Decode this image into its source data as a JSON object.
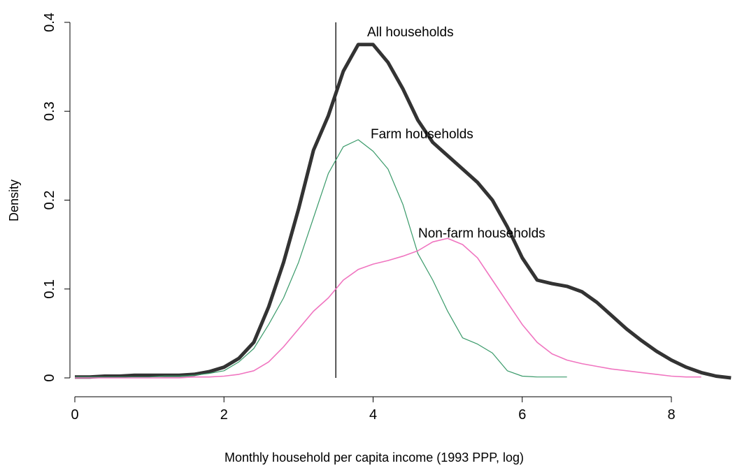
{
  "chart_data": {
    "type": "line",
    "xlabel": "Monthly household per capita income (1993 PPP, log)",
    "ylabel": "Density",
    "x": [
      0,
      0.2,
      0.4,
      0.6,
      0.8,
      1,
      1.2,
      1.4,
      1.6,
      1.8,
      2,
      2.2,
      2.4,
      2.6,
      2.8,
      3,
      3.2,
      3.4,
      3.6,
      3.8,
      4,
      4.2,
      4.4,
      4.6,
      4.8,
      5,
      5.2,
      5.4,
      5.6,
      5.8,
      6,
      6.2,
      6.4,
      6.6,
      6.8,
      7,
      7.2,
      7.4,
      7.6,
      7.8,
      8,
      8.2,
      8.4,
      8.6,
      8.8
    ],
    "series": [
      {
        "name": "All households",
        "color": "#333333",
        "values": [
          0.001,
          0.001,
          0.002,
          0.002,
          0.003,
          0.003,
          0.003,
          0.003,
          0.004,
          0.007,
          0.012,
          0.022,
          0.04,
          0.08,
          0.13,
          0.19,
          0.256,
          0.295,
          0.345,
          0.375,
          0.375,
          0.355,
          0.325,
          0.29,
          0.265,
          0.25,
          0.235,
          0.22,
          0.2,
          0.17,
          0.135,
          0.11,
          0.106,
          0.103,
          0.097,
          0.085,
          0.07,
          0.055,
          0.042,
          0.03,
          0.02,
          0.012,
          0.006,
          0.002,
          0
        ]
      },
      {
        "name": "Farm households",
        "color": "#3a9a6a",
        "values": [
          0.001,
          0.001,
          0.001,
          0.001,
          0.001,
          0.001,
          0.002,
          0.002,
          0.003,
          0.005,
          0.008,
          0.018,
          0.033,
          0.06,
          0.09,
          0.13,
          0.18,
          0.23,
          0.26,
          0.268,
          0.255,
          0.235,
          0.195,
          0.14,
          0.11,
          0.075,
          0.045,
          0.038,
          0.028,
          0.008,
          0.002,
          0.001,
          0.001,
          0.001,
          null,
          null,
          null,
          null,
          null,
          null,
          null,
          null,
          null,
          null,
          null
        ]
      },
      {
        "name": "Non-farm households",
        "color": "#f075c0",
        "values": [
          0,
          0,
          0,
          0,
          0,
          0,
          0,
          0,
          0.001,
          0.001,
          0.002,
          0.004,
          0.008,
          0.018,
          0.035,
          0.055,
          0.075,
          0.09,
          0.11,
          0.122,
          0.128,
          0.132,
          0.137,
          0.143,
          0.153,
          0.157,
          0.15,
          0.135,
          0.11,
          0.085,
          0.06,
          0.04,
          0.027,
          0.02,
          0.016,
          0.013,
          0.01,
          0.008,
          0.006,
          0.004,
          0.002,
          0.001,
          0.001,
          null,
          null
        ]
      }
    ],
    "vline": 3.5,
    "xlim": [
      0,
      8
    ],
    "xticks": [
      0,
      2,
      4,
      6,
      8
    ],
    "ylim": [
      0,
      0.4
    ],
    "yticks": [
      0,
      0.1,
      0.2,
      0.3,
      0.4
    ]
  }
}
